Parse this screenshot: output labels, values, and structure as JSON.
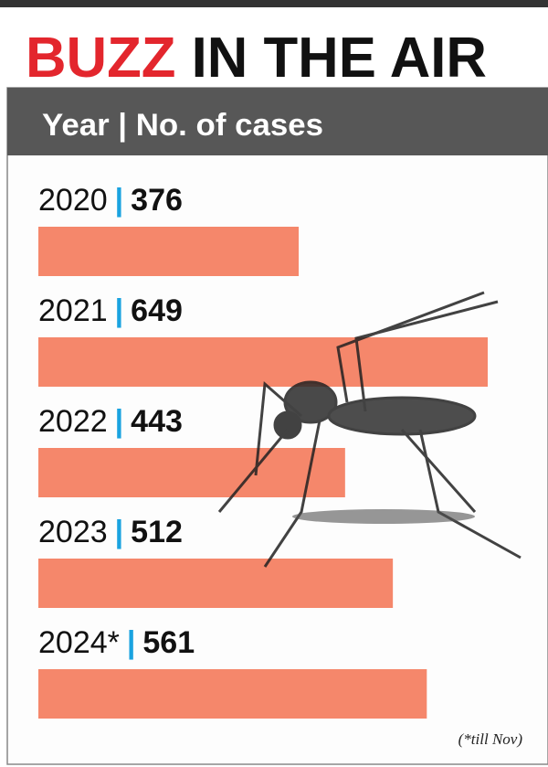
{
  "chart_data": {
    "type": "bar",
    "title": [
      "BUZZ",
      "IN THE AIR"
    ],
    "header": "Year | No. of cases",
    "categories": [
      "2020",
      "2021",
      "2022",
      "2023",
      "2024*"
    ],
    "values": [
      376,
      649,
      443,
      512,
      561
    ],
    "color": "#f5876b",
    "footnote": "(*till Nov)"
  }
}
